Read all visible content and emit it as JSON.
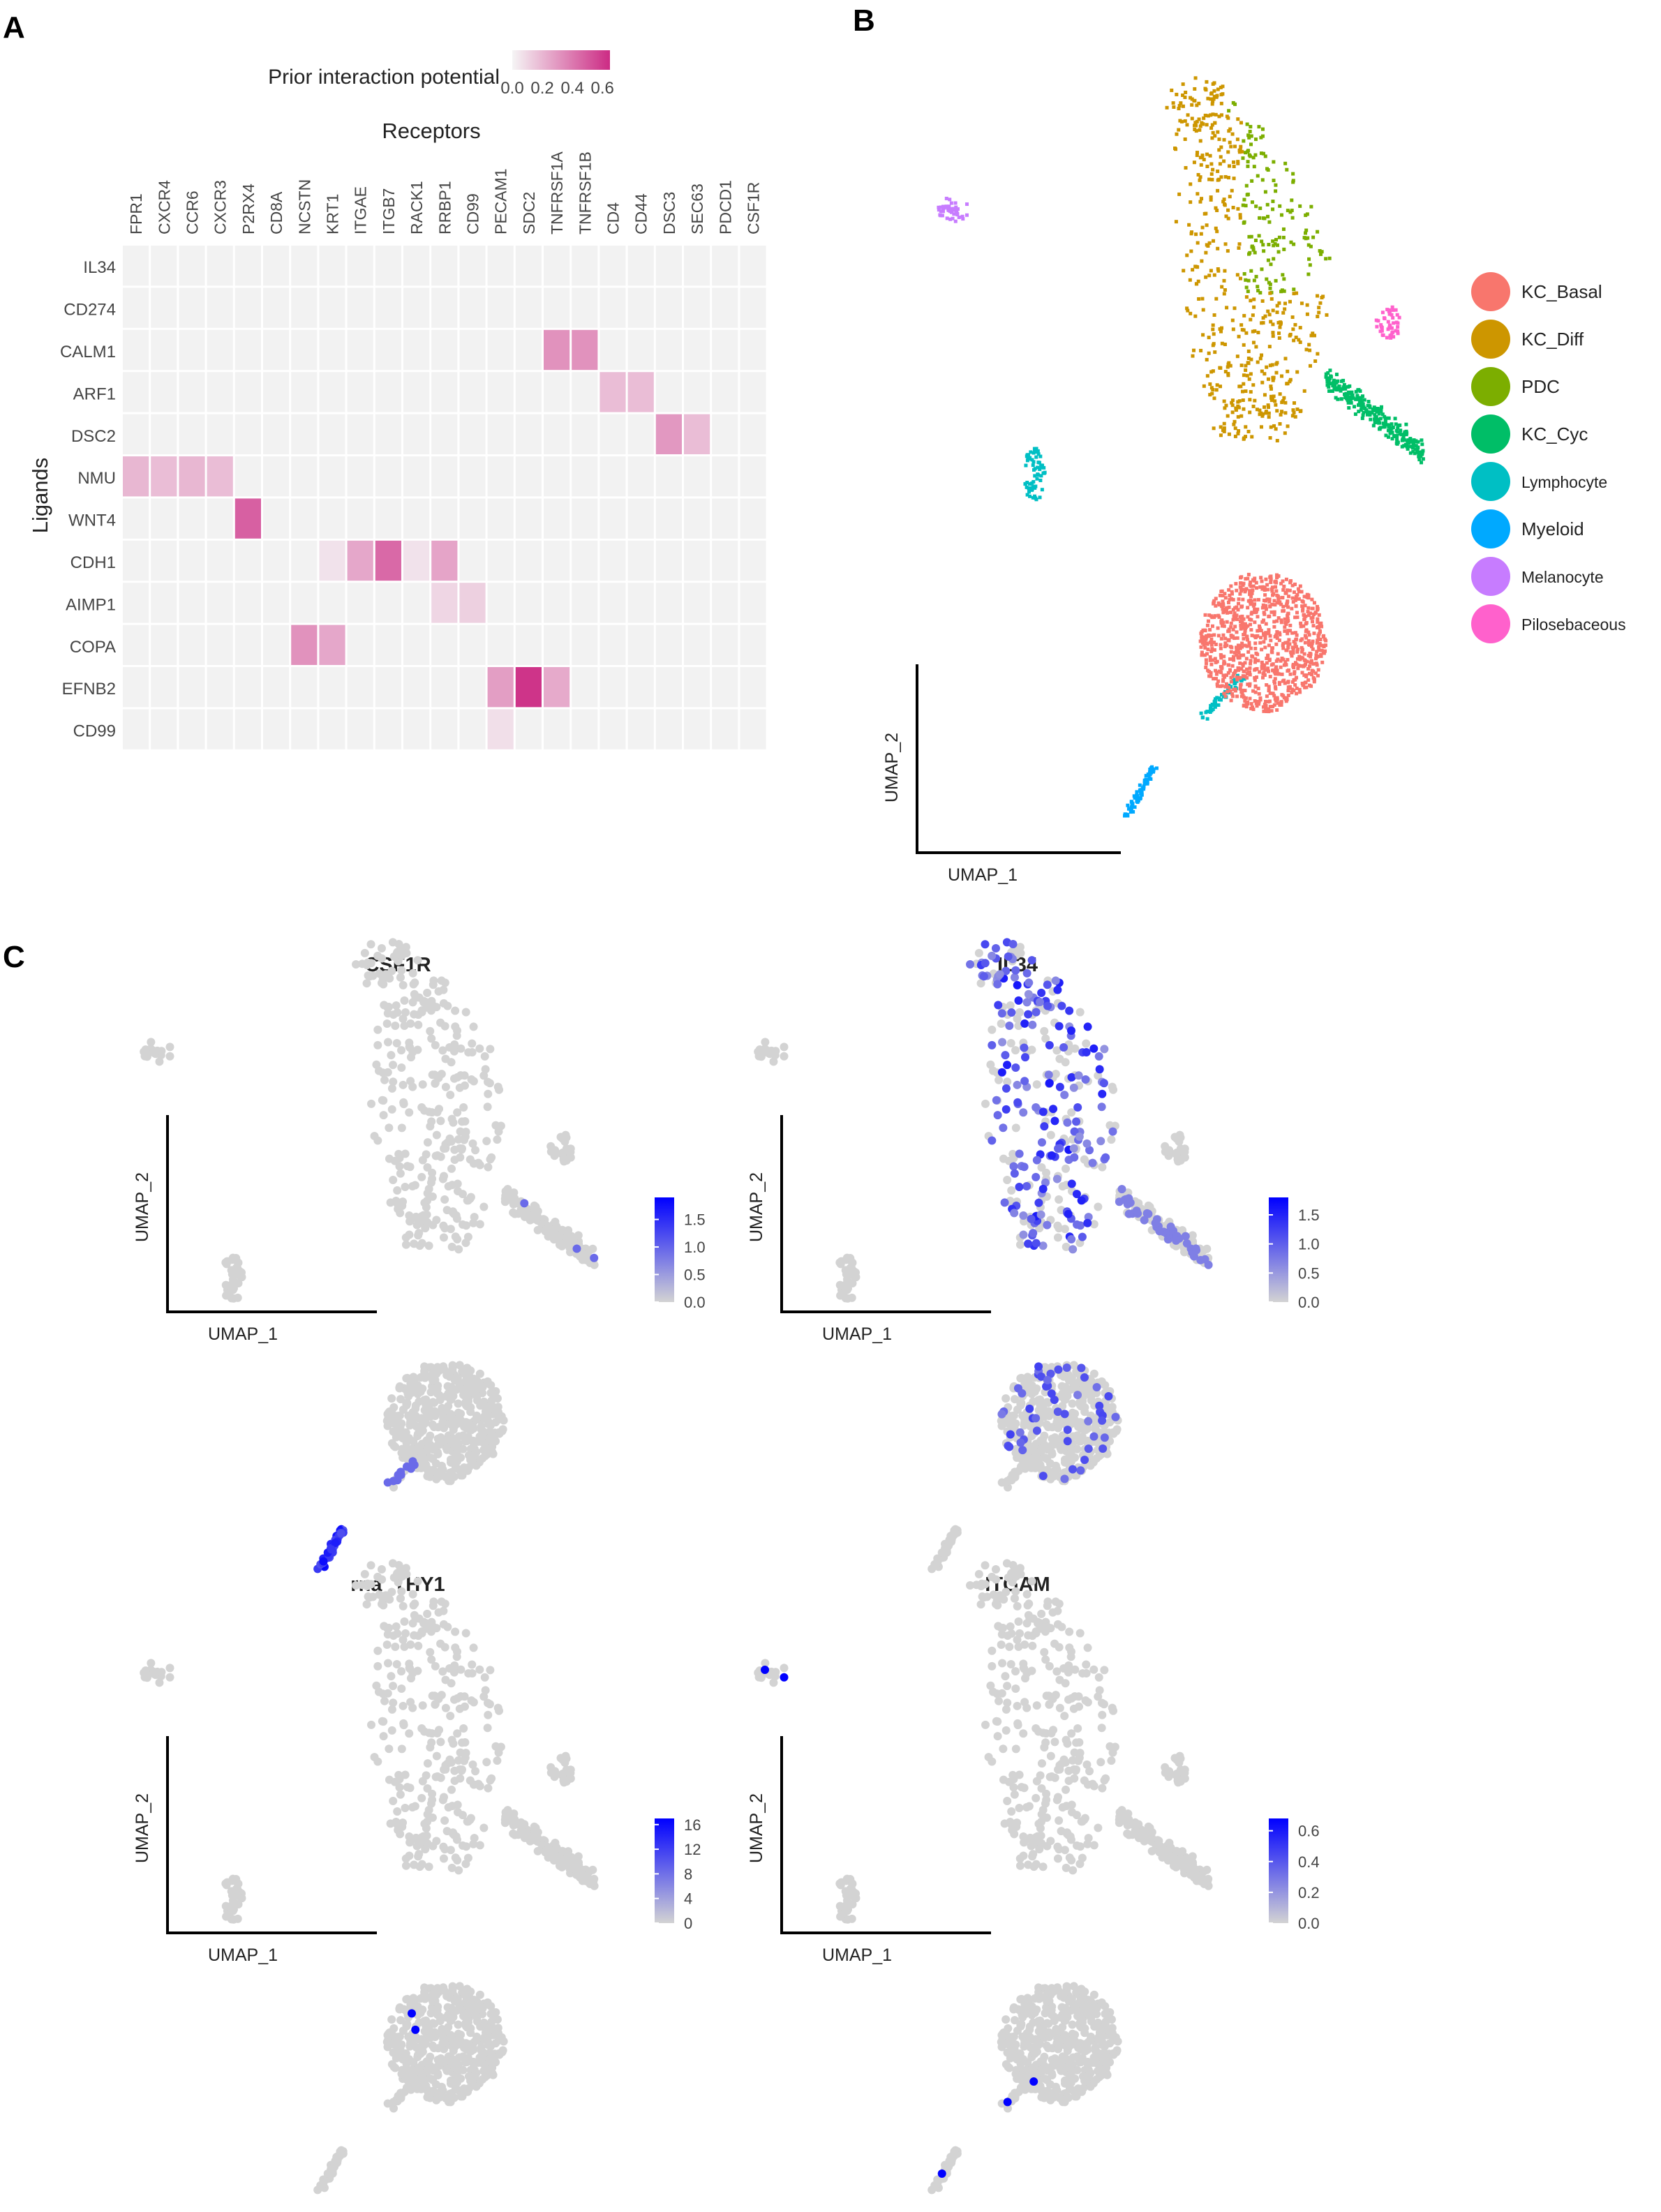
{
  "panels": {
    "a": "A",
    "b": "B",
    "c": "C"
  },
  "chart_data": [
    {
      "type": "heatmap",
      "xlabel": "Receptors",
      "ylabel": "Ligands",
      "legend_title": "Prior interaction potential",
      "legend_ticks": [
        "0.0",
        "0.2",
        "0.4",
        "0.6"
      ],
      "color_low": "#f5f5f5",
      "color_high": "#cc2b84",
      "value_range": [
        0,
        0.65
      ],
      "x": [
        "FPR1",
        "CXCR4",
        "CCR6",
        "CXCR3",
        "P2RX4",
        "CD8A",
        "NCSTN",
        "KRT1",
        "ITGAE",
        "ITGB7",
        "RACK1",
        "RRBP1",
        "CD99",
        "PECAM1",
        "SDC2",
        "TNFRSF1A",
        "TNFRSF1B",
        "CD4",
        "CD44",
        "DSC3",
        "SEC63",
        "PDCD1",
        "CSF1R"
      ],
      "y": [
        "IL34",
        "CD274",
        "CALM1",
        "ARF1",
        "DSC2",
        "NMU",
        "WNT4",
        "CDH1",
        "AIMP1",
        "COPA",
        "EFNB2",
        "CD99"
      ],
      "cells": [
        {
          "ligand": "CALM1",
          "receptor": "TNFRSF1A",
          "value": 0.32
        },
        {
          "ligand": "CALM1",
          "receptor": "TNFRSF1B",
          "value": 0.32
        },
        {
          "ligand": "ARF1",
          "receptor": "CD4",
          "value": 0.18
        },
        {
          "ligand": "ARF1",
          "receptor": "CD44",
          "value": 0.18
        },
        {
          "ligand": "DSC2",
          "receptor": "DSC3",
          "value": 0.3
        },
        {
          "ligand": "DSC2",
          "receptor": "SEC63",
          "value": 0.18
        },
        {
          "ligand": "NMU",
          "receptor": "FPR1",
          "value": 0.2
        },
        {
          "ligand": "NMU",
          "receptor": "CXCR4",
          "value": 0.18
        },
        {
          "ligand": "NMU",
          "receptor": "CCR6",
          "value": 0.2
        },
        {
          "ligand": "NMU",
          "receptor": "CXCR3",
          "value": 0.18
        },
        {
          "ligand": "WNT4",
          "receptor": "P2RX4",
          "value": 0.48
        },
        {
          "ligand": "CDH1",
          "receptor": "KRT1",
          "value": 0.06
        },
        {
          "ligand": "CDH1",
          "receptor": "ITGAE",
          "value": 0.25
        },
        {
          "ligand": "CDH1",
          "receptor": "ITGB7",
          "value": 0.45
        },
        {
          "ligand": "CDH1",
          "receptor": "RACK1",
          "value": 0.06
        },
        {
          "ligand": "CDH1",
          "receptor": "RRBP1",
          "value": 0.26
        },
        {
          "ligand": "AIMP1",
          "receptor": "RRBP1",
          "value": 0.1
        },
        {
          "ligand": "AIMP1",
          "receptor": "CD99",
          "value": 0.12
        },
        {
          "ligand": "COPA",
          "receptor": "NCSTN",
          "value": 0.32
        },
        {
          "ligand": "COPA",
          "receptor": "KRT1",
          "value": 0.25
        },
        {
          "ligand": "EFNB2",
          "receptor": "PECAM1",
          "value": 0.28
        },
        {
          "ligand": "EFNB2",
          "receptor": "SDC2",
          "value": 0.62
        },
        {
          "ligand": "EFNB2",
          "receptor": "TNFRSF1A",
          "value": 0.24
        },
        {
          "ligand": "CD99",
          "receptor": "PECAM1",
          "value": 0.07
        }
      ]
    },
    {
      "type": "scatter",
      "xlabel": "UMAP_1",
      "ylabel": "UMAP_2",
      "legend_placement": "right",
      "legend": [
        {
          "name": "KC_Basal",
          "color": "#f8766d"
        },
        {
          "name": "KC_Diff",
          "color": "#cd9600"
        },
        {
          "name": "PDC",
          "color": "#7cae00"
        },
        {
          "name": "KC_Cyc",
          "color": "#00be67"
        },
        {
          "name": "Lymphocyte",
          "color": "#00bfc4"
        },
        {
          "name": "Myeloid",
          "color": "#00a9ff"
        },
        {
          "name": "Melanocyte",
          "color": "#c77cff"
        },
        {
          "name": "Pilosebaceous",
          "color": "#ff61cc"
        }
      ]
    },
    {
      "type": "scatter",
      "panels": [
        {
          "title": "CSF1R",
          "xlabel": "UMAP_1",
          "ylabel": "UMAP_2",
          "legend_ticks": [
            "0.0",
            "0.5",
            "1.0",
            "1.5"
          ],
          "max": 1.9
        },
        {
          "title": "IL34",
          "xlabel": "UMAP_1",
          "ylabel": "UMAP_2",
          "legend_ticks": [
            "0.0",
            "0.5",
            "1.0",
            "1.5"
          ],
          "max": 1.8
        },
        {
          "title": "rna_THY1",
          "xlabel": "UMAP_1",
          "ylabel": "UMAP_2",
          "legend_ticks": [
            "0",
            "4",
            "8",
            "12",
            "16"
          ],
          "max": 17
        },
        {
          "title": "ITGAM",
          "xlabel": "UMAP_1",
          "ylabel": "UMAP_2",
          "legend_ticks": [
            "0.0",
            "0.2",
            "0.4",
            "0.6"
          ],
          "max": 0.68
        }
      ],
      "color_low": "#d3d3d3",
      "color_high": "#0000ff"
    }
  ]
}
